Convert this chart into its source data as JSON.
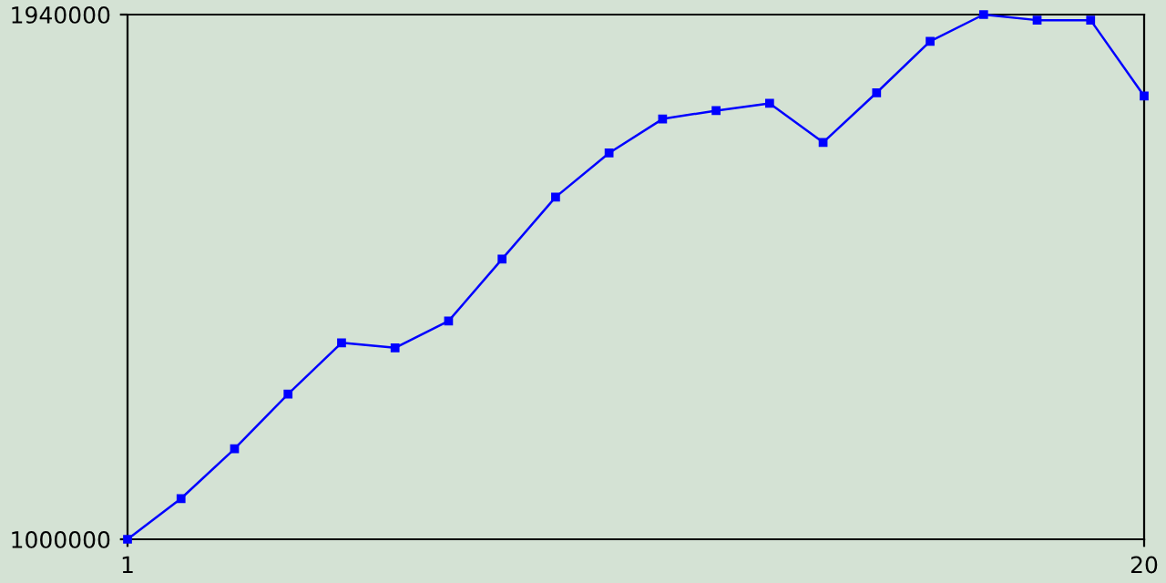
{
  "chart_data": {
    "type": "line",
    "x": [
      1,
      2,
      3,
      4,
      5,
      6,
      7,
      8,
      9,
      10,
      11,
      12,
      13,
      14,
      15,
      16,
      17,
      18,
      19,
      20
    ],
    "series": [
      {
        "color": "#0000ff",
        "values": [
          1000000,
          1073000,
          1162000,
          1260000,
          1352000,
          1343000,
          1391000,
          1502000,
          1613000,
          1692000,
          1753000,
          1768000,
          1781000,
          1711000,
          1800000,
          1892000,
          1940000,
          1930000,
          1930000,
          1794000
        ]
      }
    ],
    "xlim": [
      1,
      20
    ],
    "xticks": [
      1,
      20
    ],
    "ylim": [
      1000000,
      1940000
    ],
    "yticks": [
      1000000,
      1940000
    ],
    "marker": "square",
    "line_style": "solid",
    "grid": false,
    "legend": false
  }
}
